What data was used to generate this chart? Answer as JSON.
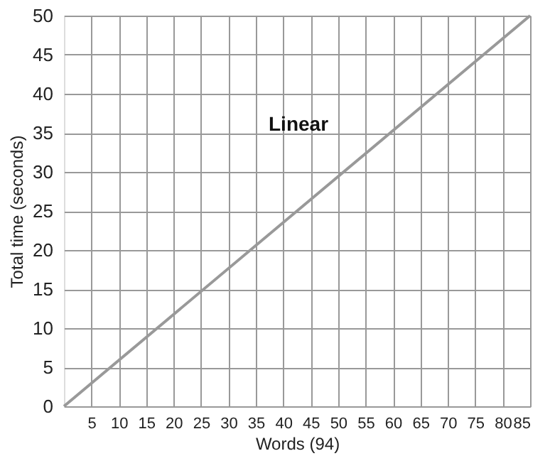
{
  "chart_data": {
    "type": "line",
    "xlabel": "Words (94)",
    "ylabel": "Total time (seconds)",
    "x": [
      0,
      85
    ],
    "series": [
      {
        "color": "#999999",
        "values": [
          0,
          50
        ]
      }
    ],
    "xlim": [
      0,
      85
    ],
    "xticks": [
      5,
      10,
      15,
      20,
      25,
      30,
      35,
      40,
      45,
      50,
      55,
      60,
      65,
      70,
      75,
      80,
      85
    ],
    "ylim": [
      0,
      50
    ],
    "yticks": [
      0,
      5,
      10,
      15,
      20,
      25,
      30,
      35,
      40,
      45,
      50
    ],
    "grid": true,
    "marker": "none",
    "line_style": "solid",
    "annotations": [
      "Linear"
    ]
  }
}
